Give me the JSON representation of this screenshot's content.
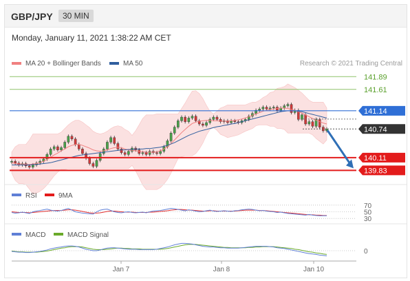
{
  "header": {
    "symbol": "GBP/JPY",
    "interval": "30 MIN",
    "datetime": "Monday, January 11, 2021 1:38:22 AM CET"
  },
  "legend": {
    "main_ma20": "MA 20 + Bollinger Bands",
    "main_ma50": "MA 50",
    "credit": "Research © 2021 Trading Central",
    "rsi": "RSI",
    "rsi_ma": "9MA",
    "macd": "MACD",
    "macd_signal": "MACD Signal"
  },
  "colors": {
    "resistance": "#8fc46a",
    "resistance_text": "#5aa02c",
    "pivot": "#2f6fd6",
    "support": "#e31b1b",
    "current": "#333333",
    "ma20": "#f08080",
    "ma50": "#2f5e9e",
    "band_fill": "#fbdcdc",
    "candle_up": "#4aa24a",
    "candle_down": "#d03a3a",
    "rsi": "#5f7fd6",
    "rsi_ma": "#e33030",
    "macd": "#5f7fd6",
    "macd_signal": "#6aaa2a"
  },
  "chart_data": {
    "type": "candlestick",
    "x_axis": {
      "labels": [
        "Jan 7",
        "Jan 8",
        "Jan 10"
      ]
    },
    "y_range": [
      139.7,
      142.0
    ],
    "levels": [
      {
        "value": 141.89,
        "label": "141.89",
        "kind": "resistance"
      },
      {
        "value": 141.61,
        "label": "141.61",
        "kind": "resistance"
      },
      {
        "value": 141.14,
        "label": "141.14",
        "kind": "pivot"
      },
      {
        "value": 140.74,
        "label": "140.74",
        "kind": "current"
      },
      {
        "value": 140.11,
        "label": "140.11",
        "kind": "support"
      },
      {
        "value": 139.83,
        "label": "139.83",
        "kind": "support"
      }
    ],
    "close_series": [
      140.03,
      139.99,
      139.95,
      139.98,
      139.93,
      139.9,
      139.95,
      139.99,
      140.03,
      140.08,
      140.18,
      140.3,
      140.35,
      140.28,
      140.33,
      140.45,
      140.58,
      140.52,
      140.4,
      140.3,
      140.2,
      140.1,
      139.98,
      139.92,
      140.05,
      140.2,
      140.3,
      140.45,
      140.55,
      140.42,
      140.3,
      140.22,
      140.18,
      140.25,
      140.32,
      140.28,
      140.2,
      140.22,
      140.18,
      140.25,
      140.22,
      140.2,
      140.25,
      140.35,
      140.48,
      140.65,
      140.78,
      140.92,
      141.0,
      140.9,
      140.98,
      141.02,
      140.92,
      140.85,
      140.82,
      140.88,
      140.95,
      141.0,
      140.95,
      140.9,
      140.92,
      140.88,
      140.92,
      140.9,
      140.88,
      140.92,
      140.95,
      141.02,
      141.08,
      141.15,
      141.18,
      141.22,
      141.18,
      141.2,
      141.22,
      141.15,
      141.2,
      141.25,
      141.28,
      141.1,
      141.15,
      140.95,
      141.05,
      140.85,
      140.9,
      140.8,
      140.95,
      140.78,
      140.7,
      140.74
    ],
    "ma20_series": [
      140.0,
      139.98,
      139.97,
      139.97,
      139.96,
      139.96,
      139.97,
      139.98,
      140.0,
      140.03,
      140.07,
      140.12,
      140.17,
      140.21,
      140.26,
      140.3,
      140.35,
      140.38,
      140.4,
      140.4,
      140.38,
      140.35,
      140.32,
      140.28,
      140.26,
      140.25,
      140.26,
      140.28,
      140.31,
      140.33,
      140.34,
      140.33,
      140.3,
      140.28,
      140.27,
      140.26,
      140.25,
      140.24,
      140.23,
      140.23,
      140.23,
      140.24,
      140.26,
      140.3,
      140.35,
      140.42,
      140.5,
      140.58,
      140.66,
      140.73,
      140.8,
      140.86,
      140.89,
      140.91,
      140.92,
      140.93,
      140.93,
      140.92,
      140.92,
      140.91,
      140.91,
      140.91,
      140.92,
      140.93,
      140.94,
      140.96,
      140.98,
      141.01,
      141.04,
      141.07,
      141.1,
      141.13,
      141.15,
      141.17,
      141.18,
      141.19,
      141.2,
      141.2,
      141.19,
      141.17,
      141.15,
      141.12,
      141.09,
      141.05,
      141.01,
      140.97,
      140.93,
      140.9,
      140.87,
      140.85
    ],
    "ma50_series": [
      139.95,
      139.95,
      139.95,
      139.95,
      139.95,
      139.95,
      139.96,
      139.96,
      139.97,
      139.98,
      139.99,
      140.0,
      140.02,
      140.04,
      140.06,
      140.08,
      140.1,
      140.12,
      140.14,
      140.16,
      140.17,
      140.18,
      140.19,
      140.2,
      140.21,
      140.22,
      140.23,
      140.24,
      140.25,
      140.26,
      140.27,
      140.28,
      140.28,
      140.29,
      140.29,
      140.3,
      140.3,
      140.3,
      140.31,
      140.31,
      140.32,
      140.33,
      140.34,
      140.36,
      140.38,
      140.41,
      140.44,
      140.48,
      140.52,
      140.56,
      140.6,
      140.63,
      140.66,
      140.69,
      140.71,
      140.73,
      140.75,
      140.77,
      140.79,
      140.8,
      140.82,
      140.83,
      140.85,
      140.86,
      140.88,
      140.9,
      140.92,
      140.94,
      140.96,
      140.98,
      141.0,
      141.02,
      141.04,
      141.06,
      141.08,
      141.1,
      141.12,
      141.13,
      141.14,
      141.14,
      141.14,
      141.13,
      141.12,
      141.1,
      141.08,
      141.06,
      141.04,
      141.02,
      141.0,
      140.98
    ],
    "projection": {
      "from": 140.74,
      "to": 139.83
    },
    "rsi": {
      "levels": [
        70,
        50,
        30
      ],
      "range": [
        20,
        80
      ],
      "series": [
        48,
        46,
        47,
        49,
        47,
        45,
        50,
        52,
        54,
        56,
        58,
        55,
        53,
        52,
        54,
        57,
        60,
        55,
        50,
        48,
        46,
        45,
        44,
        43,
        50,
        55,
        57,
        58,
        54,
        50,
        48,
        47,
        49,
        50,
        48,
        47,
        48,
        49,
        47,
        50,
        52,
        53,
        54,
        56,
        58,
        60,
        59,
        57,
        55,
        53,
        56,
        54,
        52,
        50,
        51,
        53,
        55,
        52,
        51,
        52,
        53,
        52,
        51,
        53,
        54,
        56,
        57,
        58,
        57,
        55,
        53,
        54,
        52,
        51,
        50,
        48,
        49,
        47,
        45,
        44,
        43,
        42,
        41,
        40,
        42,
        40,
        39,
        38,
        38,
        38
      ],
      "ma_series": [
        50,
        49,
        48,
        48,
        48,
        47,
        48,
        49,
        50,
        51,
        52,
        53,
        54,
        54,
        54,
        55,
        56,
        56,
        55,
        53,
        51,
        49,
        47,
        46,
        46,
        47,
        49,
        51,
        52,
        52,
        51,
        50,
        49,
        49,
        49,
        48,
        48,
        48,
        48,
        49,
        49,
        50,
        51,
        52,
        53,
        55,
        56,
        57,
        57,
        56,
        55,
        55,
        54,
        53,
        52,
        52,
        53,
        53,
        52,
        52,
        52,
        52,
        52,
        52,
        53,
        54,
        55,
        55,
        55,
        55,
        54,
        54,
        53,
        52,
        51,
        50,
        49,
        48,
        47,
        46,
        45,
        44,
        43,
        42,
        41,
        41,
        40,
        40,
        39,
        39
      ]
    },
    "macd": {
      "zero_label": "0",
      "range": [
        -0.3,
        0.3
      ],
      "series": [
        -0.02,
        -0.03,
        -0.04,
        -0.04,
        -0.05,
        -0.05,
        -0.04,
        -0.03,
        -0.02,
        0.0,
        0.02,
        0.05,
        0.07,
        0.09,
        0.1,
        0.12,
        0.13,
        0.13,
        0.12,
        0.1,
        0.07,
        0.04,
        0.02,
        0.0,
        0.0,
        0.02,
        0.05,
        0.07,
        0.08,
        0.08,
        0.07,
        0.06,
        0.05,
        0.04,
        0.04,
        0.04,
        0.03,
        0.03,
        0.03,
        0.03,
        0.03,
        0.04,
        0.06,
        0.08,
        0.1,
        0.13,
        0.16,
        0.18,
        0.2,
        0.2,
        0.19,
        0.18,
        0.16,
        0.14,
        0.12,
        0.11,
        0.1,
        0.1,
        0.09,
        0.08,
        0.08,
        0.07,
        0.07,
        0.07,
        0.07,
        0.08,
        0.09,
        0.1,
        0.11,
        0.12,
        0.12,
        0.12,
        0.12,
        0.11,
        0.1,
        0.08,
        0.07,
        0.06,
        0.04,
        0.02,
        0.0,
        -0.02,
        -0.04,
        -0.06,
        -0.08,
        -0.09,
        -0.1,
        -0.12,
        -0.13,
        -0.14
      ],
      "signal_series": [
        -0.01,
        -0.02,
        -0.03,
        -0.03,
        -0.04,
        -0.04,
        -0.04,
        -0.04,
        -0.03,
        -0.02,
        -0.01,
        0.01,
        0.03,
        0.05,
        0.07,
        0.08,
        0.1,
        0.11,
        0.11,
        0.11,
        0.1,
        0.08,
        0.06,
        0.04,
        0.03,
        0.03,
        0.03,
        0.04,
        0.05,
        0.06,
        0.07,
        0.07,
        0.06,
        0.06,
        0.05,
        0.05,
        0.05,
        0.04,
        0.04,
        0.04,
        0.04,
        0.04,
        0.04,
        0.05,
        0.06,
        0.08,
        0.1,
        0.12,
        0.14,
        0.16,
        0.17,
        0.17,
        0.17,
        0.16,
        0.15,
        0.14,
        0.13,
        0.12,
        0.11,
        0.1,
        0.09,
        0.09,
        0.08,
        0.08,
        0.08,
        0.08,
        0.08,
        0.09,
        0.09,
        0.1,
        0.1,
        0.11,
        0.11,
        0.11,
        0.11,
        0.1,
        0.09,
        0.08,
        0.07,
        0.06,
        0.04,
        0.03,
        0.01,
        -0.01,
        -0.03,
        -0.04,
        -0.06,
        -0.07,
        -0.09,
        -0.1
      ]
    }
  }
}
